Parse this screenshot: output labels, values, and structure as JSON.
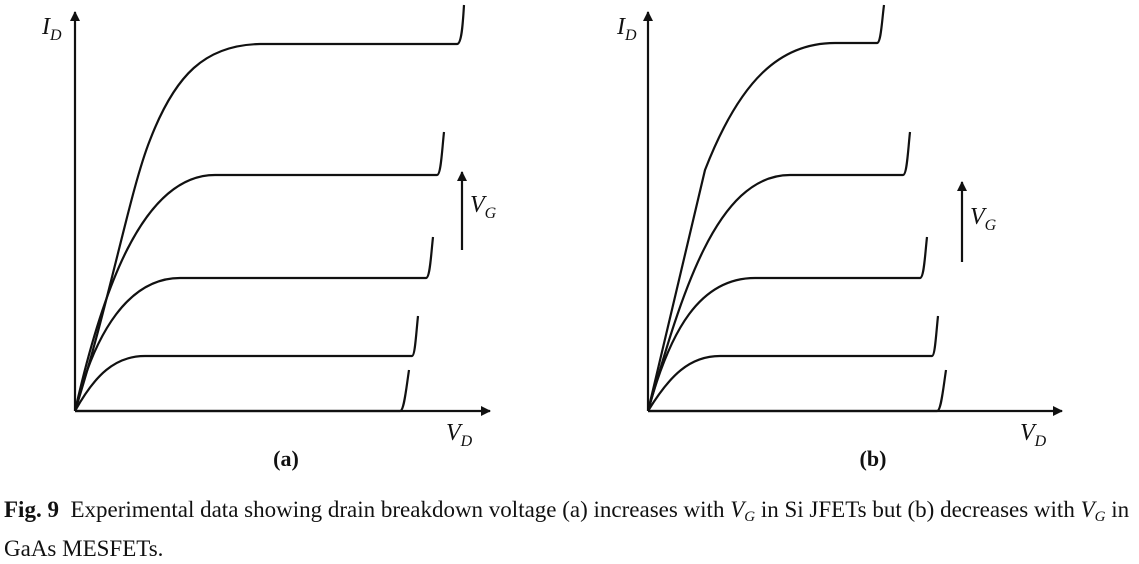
{
  "panels": [
    {
      "id": "a",
      "label": "(a)",
      "y_axis": "I",
      "y_sub": "D",
      "x_axis": "V",
      "x_sub": "D",
      "vg": "V",
      "vg_sub": "G"
    },
    {
      "id": "b",
      "label": "(b)",
      "y_axis": "I",
      "y_sub": "D",
      "x_axis": "V",
      "x_sub": "D",
      "vg": "V",
      "vg_sub": "G"
    }
  ],
  "caption": {
    "fig": "Fig. 9",
    "t1": "Experimental data showing drain breakdown voltage (a) increases with",
    "v1": "V",
    "s1": "G",
    "t2": "in Si JFETs but (b) decreases with",
    "v2": "V",
    "s2": "G",
    "t3": "in GaAs MESFETs."
  }
}
